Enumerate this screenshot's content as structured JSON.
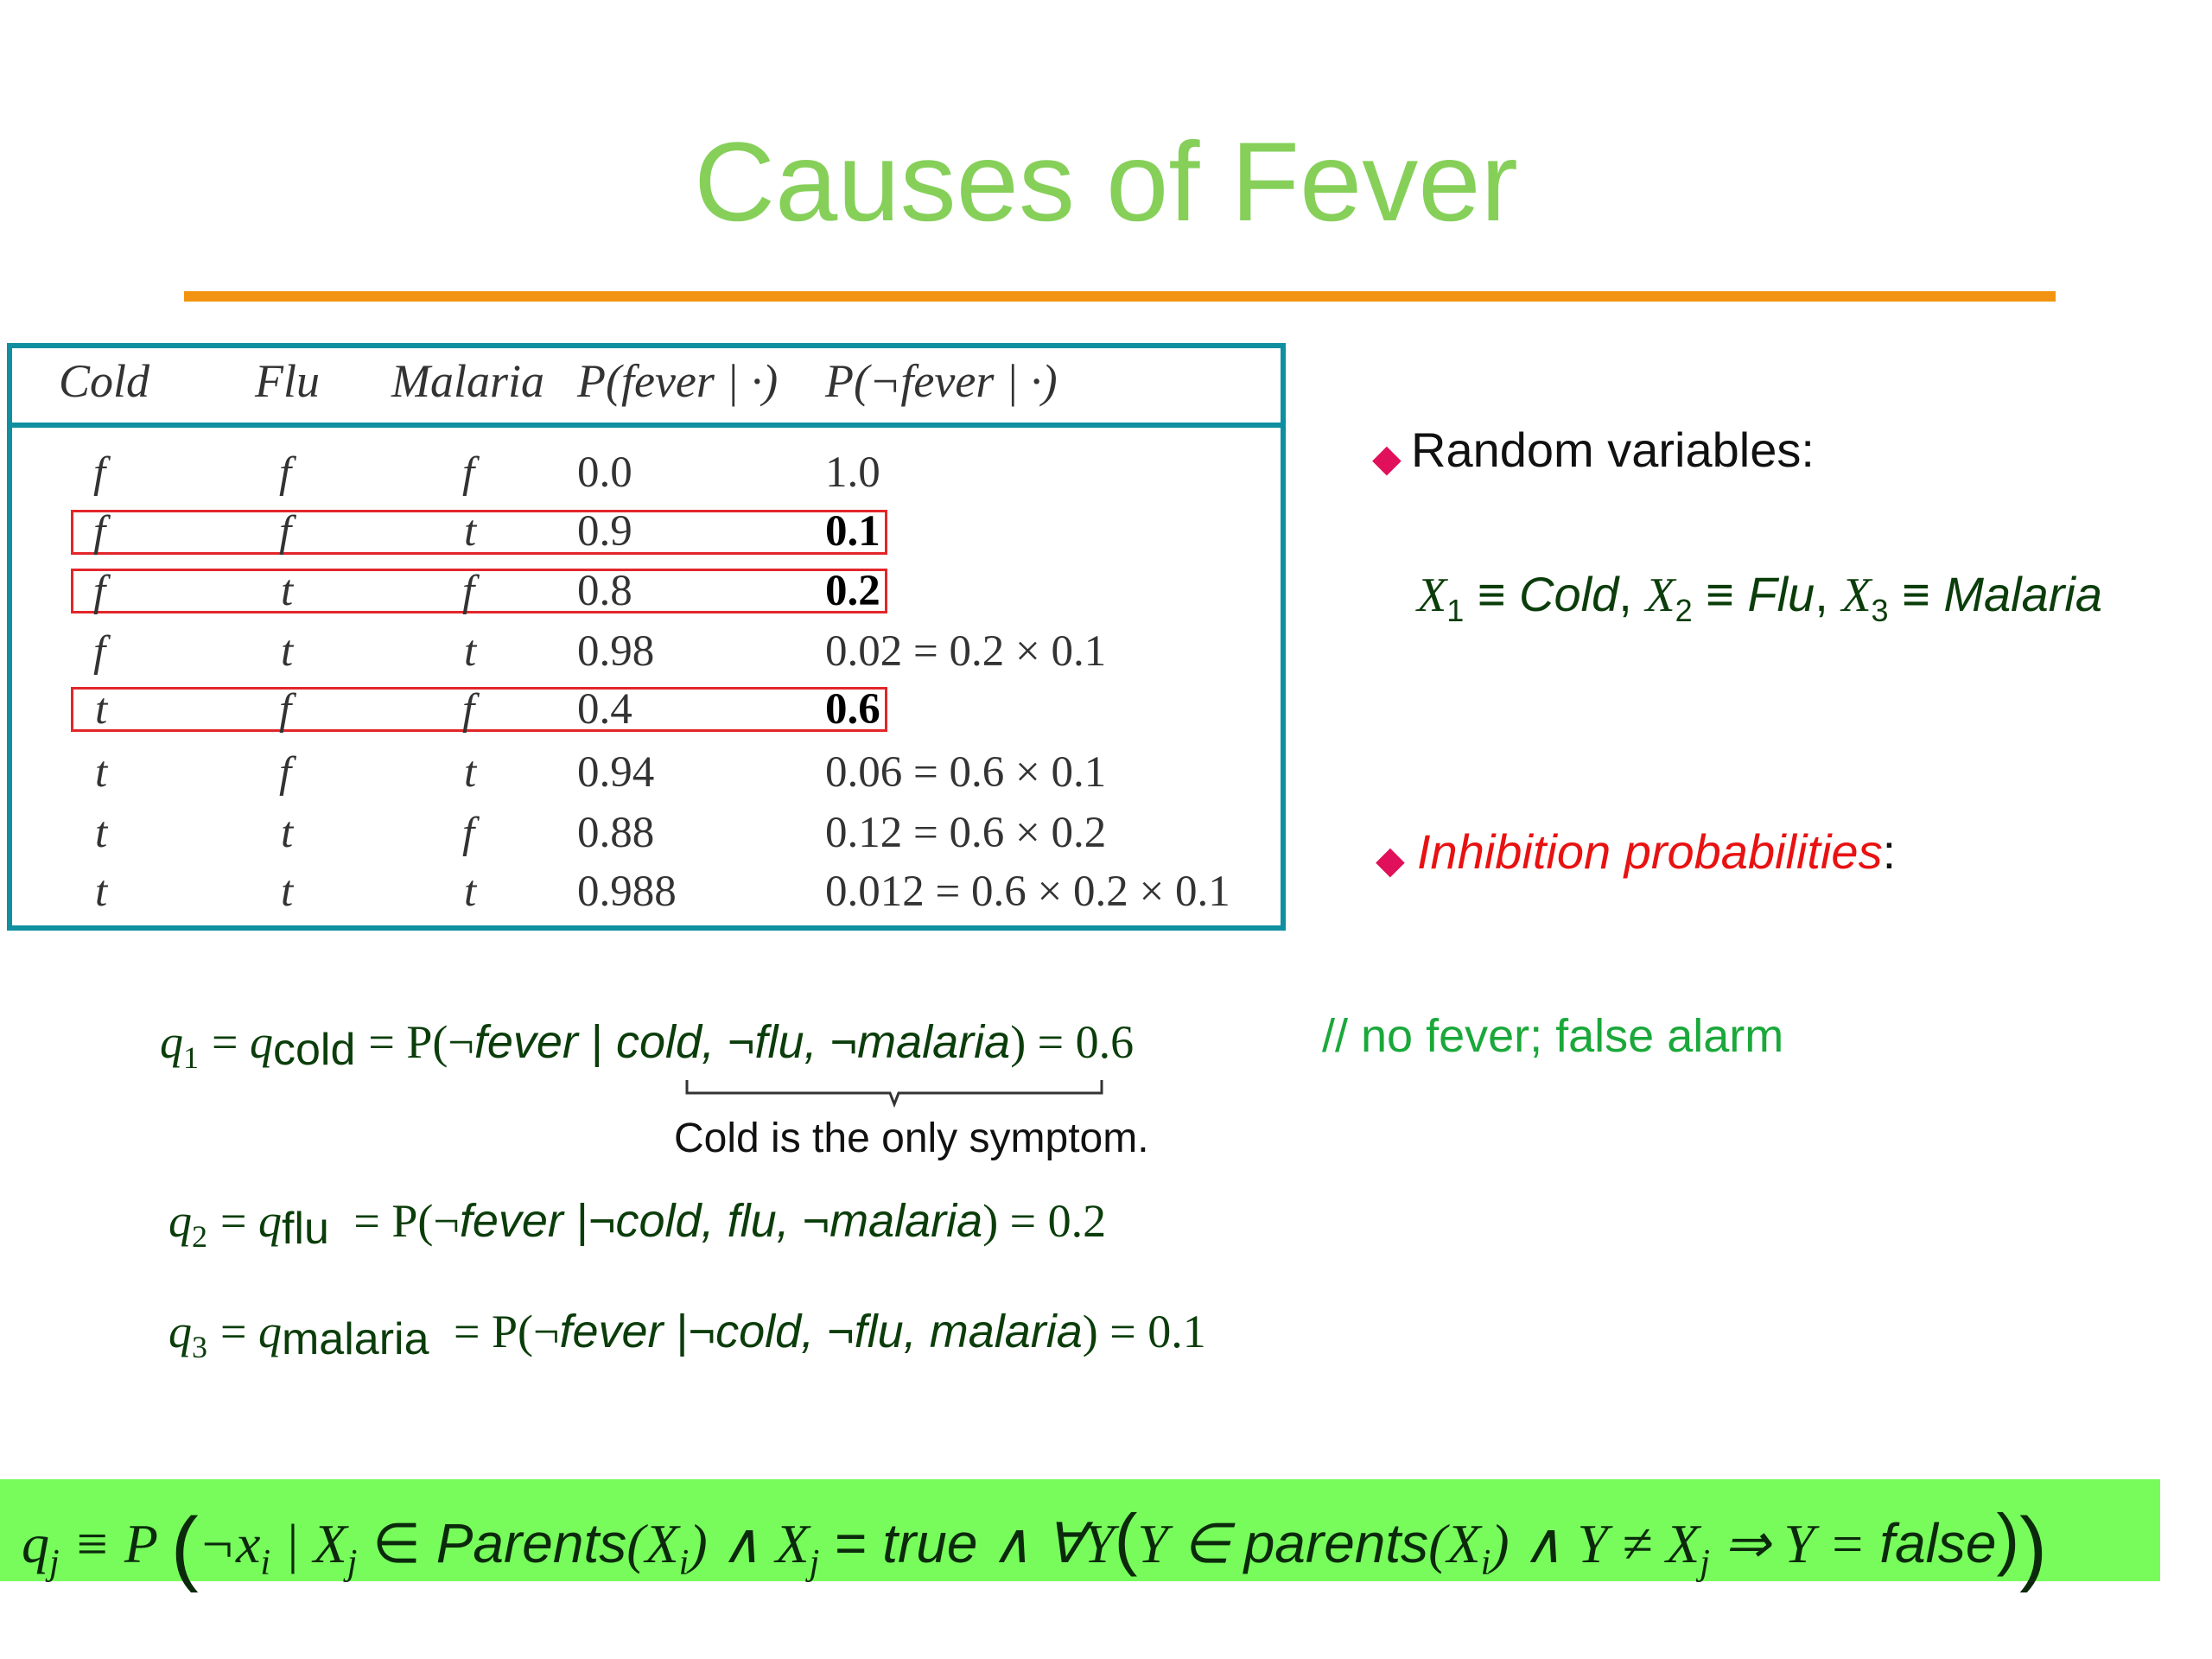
{
  "title": "Causes of Fever",
  "colors": {
    "title": "#86d05a",
    "rule": "#f29411",
    "table_border": "#0f8fa0",
    "highlight_border": "#e3262a",
    "bullet": "#e0105a",
    "inhibition_label": "#e81212",
    "note": "#1aa83a",
    "bottom_box": "#77fc5c"
  },
  "table": {
    "headers": [
      "Cold",
      "Flu",
      "Malaria",
      "P(fever | ·)",
      "P(¬fever | ·)"
    ],
    "rows": [
      [
        "f",
        "f",
        "f",
        "0.0",
        "1.0"
      ],
      [
        "f",
        "f",
        "t",
        "0.9",
        "0.1"
      ],
      [
        "f",
        "t",
        "f",
        "0.8",
        "0.2"
      ],
      [
        "f",
        "t",
        "t",
        "0.98",
        "0.02 = 0.2 × 0.1"
      ],
      [
        "t",
        "f",
        "f",
        "0.4",
        "0.6"
      ],
      [
        "t",
        "f",
        "t",
        "0.94",
        "0.06 = 0.6 × 0.1"
      ],
      [
        "t",
        "t",
        "f",
        "0.88",
        "0.12 = 0.6 × 0.2"
      ],
      [
        "t",
        "t",
        "t",
        "0.988",
        "0.012 = 0.6 × 0.2 × 0.1"
      ]
    ]
  },
  "random_variables": {
    "label": "Random variables:",
    "x1": "X",
    "x1_sub": "1",
    "cold": "Cold",
    "x2": "X",
    "x2_sub": "2",
    "flu": "Flu",
    "x3": "X",
    "x3_sub": "3",
    "malaria": "Malaria"
  },
  "inhibition": {
    "label": "Inhibition probabilities",
    "colon": ":"
  },
  "q1": {
    "lhs": "q",
    "lhs_sub": "1",
    "q": "q",
    "q_sub": "cold",
    "eq": "= P(¬",
    "fever": "fever",
    "bar": " | ",
    "cond": "cold, ¬flu, ¬malaria",
    "rhs": ") = 0.6"
  },
  "note": "// no fever; false alarm",
  "brace_note": "Cold is the only symptom.",
  "q2": {
    "lhs": "q",
    "lhs_sub": "2",
    "q": "q",
    "q_sub": "flu",
    "eq": "= P(¬",
    "fever": "fever",
    "bar": " |¬",
    "cond": "cold, flu, ¬malaria",
    "rhs": ") = 0.2"
  },
  "q3": {
    "lhs": "q",
    "lhs_sub": "3",
    "q": "q",
    "q_sub": "malaria",
    "eq": "= P(¬",
    "fever": "fever",
    "bar": " |¬",
    "cond": "cold, ¬flu, malaria",
    "rhs": ") = 0.1"
  },
  "bottom": {
    "q": "q",
    "sub_j": "j",
    "p": " ≡ P ",
    "open": "(",
    "neg_x": "¬x",
    "sub_i": "i",
    "given": " | X",
    "in": " ∈ ",
    "parents": "Parents",
    "xi": "(X",
    "close_i": ") ∧ X",
    "eq_true": " = ",
    "true_word": "true",
    "forall": " ∧ ∀Y",
    "open2": "(",
    "y_in": "Y ∈ ",
    "parents2": "parents",
    "xi2": "(X",
    "close_i2": ") ∧ Y ≠ X",
    "implies": " ⇒ Y = ",
    "false_word": "false",
    "close2": ")",
    "close": ")"
  }
}
